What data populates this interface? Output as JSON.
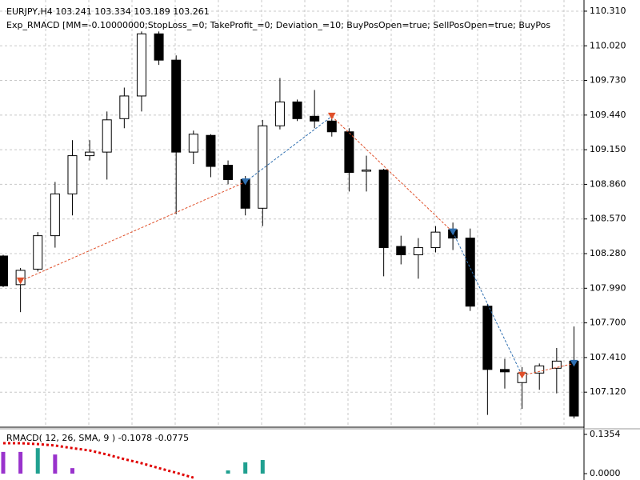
{
  "chart_data": [
    {
      "type": "candlestick",
      "title": "EURJPY,H4  103.241 103.334 103.189 103.261",
      "subtitle": "Exp_RMACD [MM=-0.10000000;StopLoss_=0; TakeProfit_=0; Deviation_=10; BuyPosOpen=true; SellPosOpen=true; BuyPos",
      "open": [
        108.26,
        108.02,
        108.15,
        108.43,
        108.78,
        109.1,
        109.13,
        109.41,
        109.6,
        110.12,
        109.9,
        109.13,
        109.27,
        109.02,
        108.9,
        108.66,
        109.35,
        109.55,
        109.43,
        109.39,
        109.3,
        108.97,
        108.98,
        108.34,
        108.27,
        108.33,
        108.48,
        108.41,
        107.84,
        107.31,
        107.2,
        107.28,
        107.32,
        107.38
      ],
      "high": [
        108.27,
        108.16,
        108.46,
        108.88,
        109.23,
        109.23,
        109.47,
        109.67,
        110.14,
        110.14,
        109.94,
        109.31,
        109.28,
        109.06,
        108.93,
        109.4,
        109.75,
        109.57,
        109.65,
        109.41,
        109.33,
        109.1,
        108.99,
        108.43,
        108.41,
        108.51,
        108.54,
        108.49,
        107.86,
        107.4,
        107.33,
        107.36,
        107.49,
        107.67
      ],
      "low": [
        108.0,
        107.79,
        108.13,
        108.33,
        108.6,
        109.06,
        108.9,
        109.33,
        109.47,
        109.86,
        108.61,
        109.03,
        108.92,
        108.86,
        108.6,
        108.51,
        109.32,
        109.39,
        109.33,
        109.26,
        108.8,
        108.8,
        108.09,
        108.19,
        108.07,
        108.29,
        108.31,
        107.8,
        106.93,
        107.15,
        106.98,
        107.14,
        107.11,
        106.9
      ],
      "close": [
        108.01,
        108.14,
        108.43,
        108.78,
        109.1,
        109.13,
        109.4,
        109.6,
        110.12,
        109.9,
        109.13,
        109.28,
        109.01,
        108.9,
        108.66,
        109.35,
        109.55,
        109.41,
        109.39,
        109.3,
        108.96,
        108.98,
        108.33,
        108.27,
        108.33,
        108.46,
        108.41,
        107.84,
        107.31,
        107.29,
        107.28,
        107.34,
        107.38,
        106.92
      ],
      "up_color": "#ffffff",
      "down_color": "#000000",
      "trades": [
        {
          "index": 1,
          "price": 108.05,
          "color": "#e0502a"
        },
        {
          "index": 14,
          "price": 108.88,
          "color": "#2f6fb0"
        },
        {
          "index": 19,
          "price": 109.43,
          "color": "#e0502a"
        },
        {
          "index": 26,
          "price": 108.46,
          "color": "#2f6fb0"
        },
        {
          "index": 30,
          "price": 107.26,
          "color": "#e0502a"
        },
        {
          "index": 33,
          "price": 107.36,
          "color": "#2f6fb0"
        }
      ],
      "ylim": [
        106.84,
        110.37
      ],
      "yticks": [
        {
          "value": 110.31,
          "label": "110.310"
        },
        {
          "value": 110.02,
          "label": "110.020"
        },
        {
          "value": 109.73,
          "label": "109.730"
        },
        {
          "value": 109.44,
          "label": "109.440"
        },
        {
          "value": 109.15,
          "label": "109.150"
        },
        {
          "value": 108.86,
          "label": "108.860"
        },
        {
          "value": 108.57,
          "label": "108.570"
        },
        {
          "value": 108.28,
          "label": "108.280"
        },
        {
          "value": 107.99,
          "label": "107.990"
        },
        {
          "value": 107.7,
          "label": "107.700"
        },
        {
          "value": 107.41,
          "label": "107.410"
        },
        {
          "value": 107.12,
          "label": "107.120"
        }
      ],
      "grid": true
    },
    {
      "type": "histogram-line",
      "title": "RMACD( 12, 26, SMA, 9 ) -0.1078 -0.0775",
      "histogram": [
        0.075,
        0.075,
        0.088,
        0.066,
        0.019,
        null,
        null,
        null,
        null,
        null,
        null,
        null,
        null,
        0.011,
        0.039,
        0.047,
        null,
        null,
        null,
        null,
        null,
        null,
        null,
        null,
        null,
        null,
        null,
        null,
        null,
        null,
        null,
        null,
        null,
        null
      ],
      "histogram_colors": [
        "#9932cc",
        "#9932cc",
        "#20a090",
        "#9932cc",
        "#9932cc",
        null,
        null,
        null,
        null,
        null,
        null,
        null,
        null,
        "#20a090",
        "#20a090",
        "#20a090",
        null,
        null,
        null,
        null,
        null,
        null,
        null,
        null,
        null,
        null,
        null,
        null,
        null,
        null,
        null,
        null,
        null,
        null
      ],
      "signal": [
        0.105,
        0.105,
        0.102,
        0.097,
        0.088,
        0.08,
        0.066,
        0.05,
        0.036,
        0.019,
        0.003,
        -0.014,
        null,
        null,
        null,
        null,
        null,
        null,
        null,
        null,
        null,
        null,
        null,
        null,
        null,
        null,
        null,
        null,
        null,
        null,
        null,
        null,
        null,
        null
      ],
      "signal_color": "#e00000",
      "ylim": [
        -0.022,
        0.152
      ],
      "yticks": [
        {
          "value": 0.1354,
          "label": "0.1354"
        },
        {
          "value": 0,
          "label": "0.0000"
        }
      ]
    }
  ]
}
